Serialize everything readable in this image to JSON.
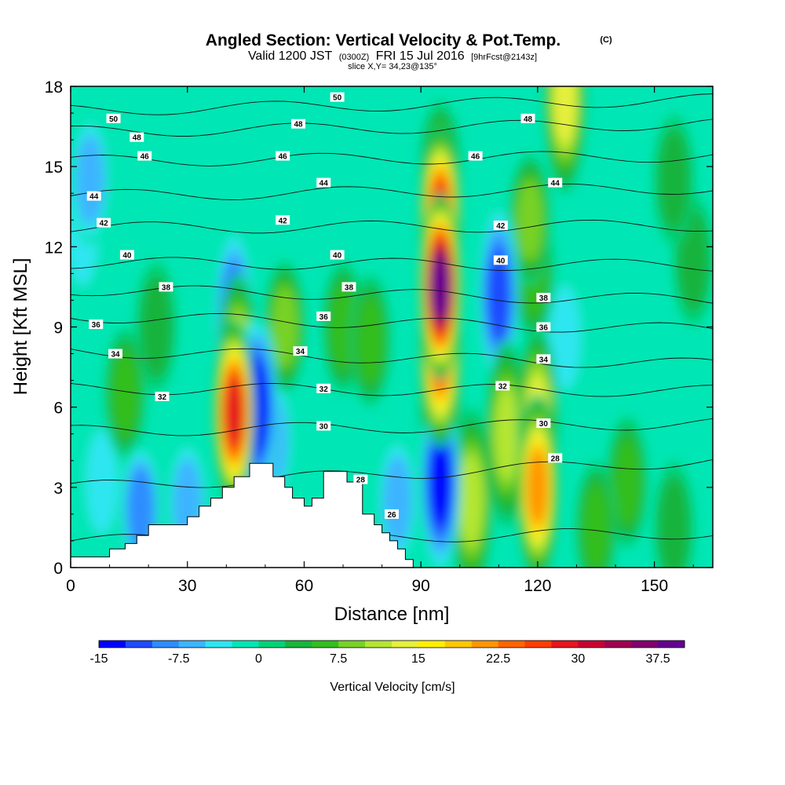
{
  "header": {
    "title": "Angled Section: Vertical Velocity & Pot.Temp.",
    "copyright_mark": "(C)",
    "valid_prefix": "Valid 1200 JST",
    "valid_utc": "(0300Z)",
    "valid_date": "FRI 15 Jul 2016",
    "forecast_tag": "[9hrFcst@2143z]",
    "slice": "slice X,Y= 34,23@135°"
  },
  "chart_data": {
    "type": "heatmap",
    "title": "Angled Section: Vertical Velocity & Pot.Temp.",
    "xlabel": "Distance [nm]",
    "ylabel": "Height [Kft MSL]",
    "xlim": [
      0,
      165
    ],
    "ylim": [
      0,
      18
    ],
    "x_ticks": [
      "0",
      "30",
      "60",
      "90",
      "120",
      "150"
    ],
    "y_ticks": [
      "0",
      "3",
      "6",
      "9",
      "12",
      "15",
      "18"
    ],
    "colorbar": {
      "label": "Vertical Velocity [cm/s]",
      "tick_labels": [
        "-15",
        "-7.5",
        "0",
        "7.5",
        "15",
        "22.5",
        "30",
        "37.5"
      ],
      "min": -15,
      "max": 40,
      "step": 2.5,
      "colors": [
        "#0000ff",
        "#1e4bff",
        "#2f8cff",
        "#3cb4ff",
        "#2ee6f0",
        "#00e6b4",
        "#00d278",
        "#19b43c",
        "#32be1e",
        "#78d228",
        "#b4e632",
        "#e6f03c",
        "#fff000",
        "#ffc800",
        "#ff9600",
        "#ff6400",
        "#ff3c00",
        "#e6141e",
        "#c80032",
        "#a00050",
        "#82006e",
        "#640091"
      ]
    },
    "terrain": [
      [
        0,
        0.4
      ],
      [
        10,
        0.4
      ],
      [
        10,
        0.7
      ],
      [
        14,
        0.7
      ],
      [
        14,
        0.9
      ],
      [
        17,
        0.9
      ],
      [
        17,
        1.2
      ],
      [
        20,
        1.2
      ],
      [
        20,
        1.6
      ],
      [
        30,
        1.6
      ],
      [
        30,
        1.9
      ],
      [
        33,
        1.9
      ],
      [
        33,
        2.3
      ],
      [
        36,
        2.3
      ],
      [
        36,
        2.6
      ],
      [
        39,
        2.6
      ],
      [
        39,
        3.0
      ],
      [
        42,
        3.0
      ],
      [
        42,
        3.4
      ],
      [
        46,
        3.4
      ],
      [
        46,
        3.9
      ],
      [
        52,
        3.9
      ],
      [
        52,
        3.4
      ],
      [
        55,
        3.4
      ],
      [
        55,
        3.0
      ],
      [
        57,
        3.0
      ],
      [
        57,
        2.6
      ],
      [
        60,
        2.6
      ],
      [
        60,
        2.3
      ],
      [
        62,
        2.3
      ],
      [
        62,
        2.6
      ],
      [
        65,
        2.6
      ],
      [
        65,
        3.6
      ],
      [
        71,
        3.6
      ],
      [
        71,
        3.2
      ],
      [
        75,
        3.2
      ],
      [
        75,
        2.0
      ],
      [
        78,
        2.0
      ],
      [
        78,
        1.6
      ],
      [
        80,
        1.6
      ],
      [
        80,
        1.3
      ],
      [
        82,
        1.3
      ],
      [
        82,
        1.0
      ],
      [
        84,
        1.0
      ],
      [
        84,
        0.7
      ],
      [
        86,
        0.7
      ],
      [
        86,
        0.3
      ],
      [
        88,
        0.3
      ],
      [
        88,
        0.0
      ],
      [
        0,
        0.0
      ]
    ],
    "velocity_features": [
      {
        "x": 5,
        "y": 14.5,
        "value": -7.5
      },
      {
        "x": 3,
        "y": 12.5,
        "value": -5
      },
      {
        "x": 8,
        "y": 3.2,
        "value": -5
      },
      {
        "x": 18,
        "y": 2.2,
        "value": -10
      },
      {
        "x": 30,
        "y": 2.4,
        "value": -7.5
      },
      {
        "x": 14,
        "y": 6.5,
        "value": 7.5
      },
      {
        "x": 22,
        "y": 9.0,
        "value": 5
      },
      {
        "x": 42,
        "y": 5.8,
        "value": 30
      },
      {
        "x": 43,
        "y": 7.5,
        "value": 15
      },
      {
        "x": 42,
        "y": 9.3,
        "value": -12.5
      },
      {
        "x": 48,
        "y": 6.0,
        "value": -15
      },
      {
        "x": 52,
        "y": 4.8,
        "value": -7.5
      },
      {
        "x": 55,
        "y": 9.0,
        "value": 10
      },
      {
        "x": 70,
        "y": 9.0,
        "value": 7.5
      },
      {
        "x": 77,
        "y": 8.5,
        "value": 7.5
      },
      {
        "x": 84,
        "y": 2.5,
        "value": -7.5
      },
      {
        "x": 95,
        "y": 10.5,
        "value": 40
      },
      {
        "x": 95,
        "y": 13.0,
        "value": 30
      },
      {
        "x": 95,
        "y": 8.0,
        "value": 25
      },
      {
        "x": 95,
        "y": 6.0,
        "value": 12.5
      },
      {
        "x": 95,
        "y": 15.0,
        "value": 7.5
      },
      {
        "x": 95,
        "y": 3.2,
        "value": -15
      },
      {
        "x": 103,
        "y": 2.5,
        "value": 12.5
      },
      {
        "x": 110,
        "y": 10.2,
        "value": -12.5
      },
      {
        "x": 112,
        "y": 5.0,
        "value": 12.5
      },
      {
        "x": 120,
        "y": 3.0,
        "value": 22.5
      },
      {
        "x": 120,
        "y": 5.5,
        "value": 15
      },
      {
        "x": 118,
        "y": 13.0,
        "value": 10
      },
      {
        "x": 119,
        "y": 11.0,
        "value": 7.5
      },
      {
        "x": 127,
        "y": 17.5,
        "value": 15
      },
      {
        "x": 127,
        "y": 8.6,
        "value": -5
      },
      {
        "x": 143,
        "y": 3.2,
        "value": 7.5
      },
      {
        "x": 160,
        "y": 11.5,
        "value": 5
      },
      {
        "x": 155,
        "y": 14.5,
        "value": 5
      },
      {
        "x": 135,
        "y": 1.5,
        "value": 7.5
      },
      {
        "x": 155,
        "y": 1.5,
        "value": 5
      }
    ],
    "isentropes": [
      {
        "value": 26,
        "y": 1.0,
        "y_end": 1.3
      },
      {
        "value": 28,
        "y": 3.0,
        "y_end": 4.0
      },
      {
        "value": 30,
        "y": 5.1,
        "y_end": 5.4
      },
      {
        "value": 32,
        "y": 6.7,
        "y_end": 6.6
      },
      {
        "value": 34,
        "y": 8.1,
        "y_end": 7.6
      },
      {
        "value": 36,
        "y": 9.4,
        "y_end": 8.9
      },
      {
        "value": 38,
        "y": 10.4,
        "y_end": 10.0
      },
      {
        "value": 40,
        "y": 11.4,
        "y_end": 11.3
      },
      {
        "value": 42,
        "y": 12.7,
        "y_end": 12.8
      },
      {
        "value": 44,
        "y": 13.9,
        "y_end": 14.2
      },
      {
        "value": 46,
        "y": 15.2,
        "y_end": 15.4
      },
      {
        "value": 48,
        "y": 16.3,
        "y_end": 16.6
      },
      {
        "value": 50,
        "y": 17.1,
        "y_end": 17.5
      }
    ],
    "contour_labels": [
      {
        "text": "50",
        "x": 11,
        "y": 16.8
      },
      {
        "text": "48",
        "x": 17,
        "y": 16.1
      },
      {
        "text": "46",
        "x": 19,
        "y": 15.4
      },
      {
        "text": "44",
        "x": 6,
        "y": 13.9
      },
      {
        "text": "42",
        "x": 8.5,
        "y": 12.9
      },
      {
        "text": "40",
        "x": 14.5,
        "y": 11.7
      },
      {
        "text": "38",
        "x": 24.5,
        "y": 10.5
      },
      {
        "text": "36",
        "x": 6.5,
        "y": 9.1
      },
      {
        "text": "34",
        "x": 11.5,
        "y": 8.0
      },
      {
        "text": "32",
        "x": 23.5,
        "y": 6.4
      },
      {
        "text": "50",
        "x": 68.5,
        "y": 17.6
      },
      {
        "text": "48",
        "x": 58.5,
        "y": 16.6
      },
      {
        "text": "46",
        "x": 54.5,
        "y": 15.4
      },
      {
        "text": "44",
        "x": 65,
        "y": 14.4
      },
      {
        "text": "42",
        "x": 54.5,
        "y": 13.0
      },
      {
        "text": "40",
        "x": 68.5,
        "y": 11.7
      },
      {
        "text": "38",
        "x": 71.5,
        "y": 10.5
      },
      {
        "text": "36",
        "x": 65,
        "y": 9.4
      },
      {
        "text": "34",
        "x": 59,
        "y": 8.1
      },
      {
        "text": "32",
        "x": 65,
        "y": 6.7
      },
      {
        "text": "30",
        "x": 65,
        "y": 5.3
      },
      {
        "text": "28",
        "x": 74.5,
        "y": 3.3
      },
      {
        "text": "26",
        "x": 82.5,
        "y": 2.0
      },
      {
        "text": "48",
        "x": 117.5,
        "y": 16.8
      },
      {
        "text": "46",
        "x": 104,
        "y": 15.4
      },
      {
        "text": "44",
        "x": 124.5,
        "y": 14.4
      },
      {
        "text": "42",
        "x": 110.5,
        "y": 12.8
      },
      {
        "text": "40",
        "x": 110.5,
        "y": 11.5
      },
      {
        "text": "38",
        "x": 121.5,
        "y": 10.1
      },
      {
        "text": "36",
        "x": 121.5,
        "y": 9.0
      },
      {
        "text": "34",
        "x": 121.5,
        "y": 7.8
      },
      {
        "text": "32",
        "x": 111,
        "y": 6.8
      },
      {
        "text": "30",
        "x": 121.5,
        "y": 5.4
      },
      {
        "text": "28",
        "x": 124.5,
        "y": 4.1
      }
    ]
  }
}
